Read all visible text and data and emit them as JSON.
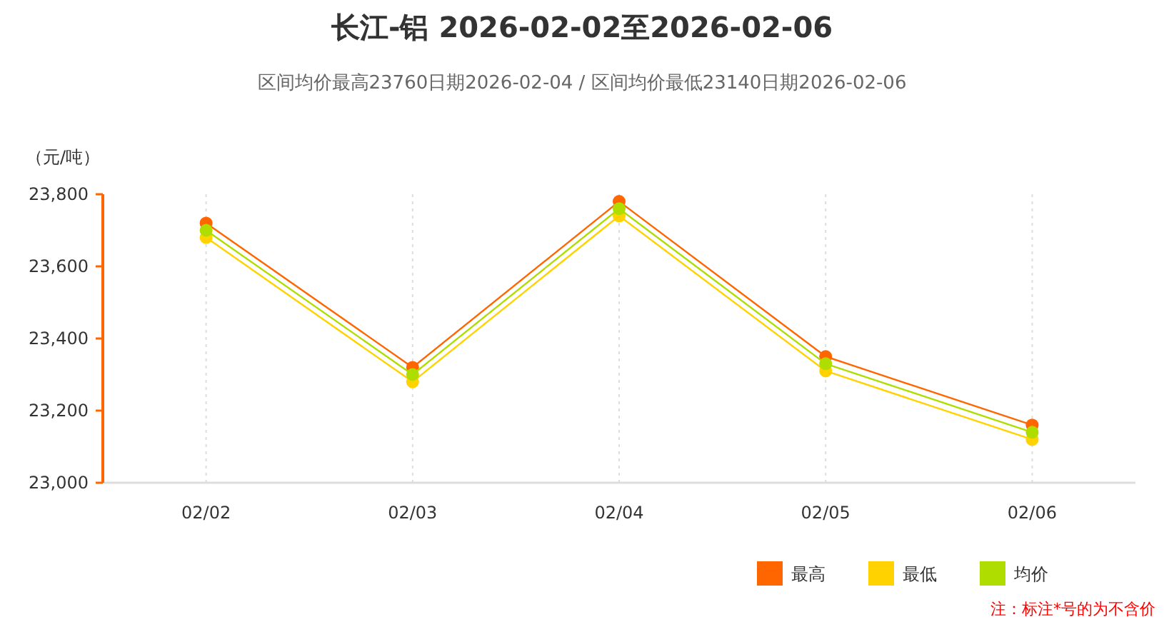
{
  "chart_data": {
    "type": "line",
    "title": "长江-铝 2026-02-02至2026-02-06",
    "subtitle": "区间均价最高23760日期2026-02-04 / 区间均价最低23140日期2026-02-06",
    "ylabel": "（元/吨）",
    "categories": [
      "02/02",
      "02/03",
      "02/04",
      "02/05",
      "02/06"
    ],
    "series": [
      {
        "name": "最高",
        "color": "#ff6600",
        "values": [
          23720,
          23320,
          23780,
          23350,
          23160
        ]
      },
      {
        "name": "最低",
        "color": "#ffd200",
        "values": [
          23680,
          23280,
          23740,
          23310,
          23120
        ]
      },
      {
        "name": "均价",
        "color": "#b0dd00",
        "values": [
          23700,
          23300,
          23760,
          23330,
          23140
        ]
      }
    ],
    "ylim": [
      23000,
      23800
    ],
    "yticks": [
      {
        "value": 23000,
        "label": "23,000"
      },
      {
        "value": 23200,
        "label": "23,200"
      },
      {
        "value": 23400,
        "label": "23,400"
      },
      {
        "value": 23600,
        "label": "23,600"
      },
      {
        "value": 23800,
        "label": "23,800"
      }
    ],
    "grid": "x",
    "legend": "bottom right",
    "marker": "circle",
    "line_style": "solid",
    "annotations": [
      "注：标注*号的为不含价"
    ]
  }
}
